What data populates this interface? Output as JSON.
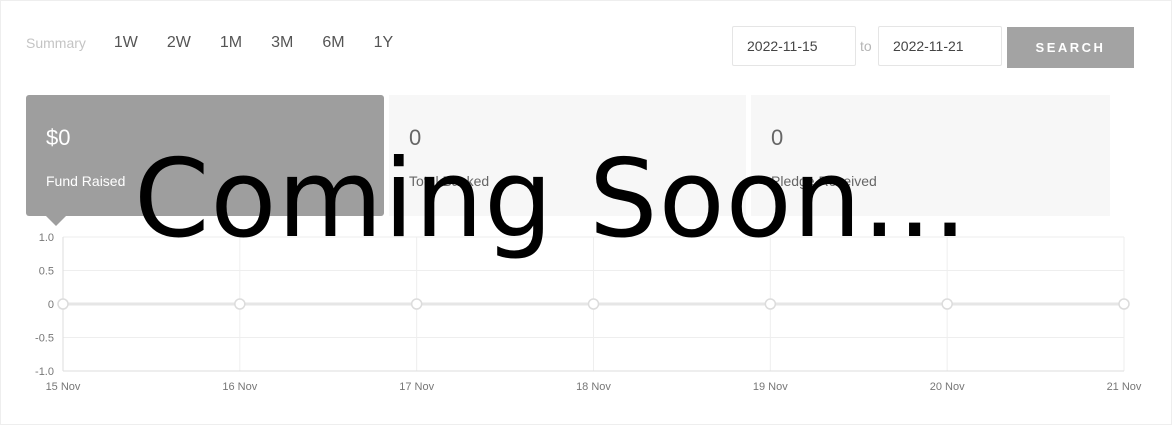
{
  "filters": {
    "summary_label": "Summary",
    "periods": [
      "1W",
      "2W",
      "1M",
      "3M",
      "6M",
      "1Y"
    ]
  },
  "date_range": {
    "from": "2022-11-15",
    "to_label": "to",
    "to": "2022-11-21",
    "search_label": "SEARCH"
  },
  "cards": [
    {
      "value": "$0",
      "label": "Fund Raised",
      "active": true
    },
    {
      "value": "0",
      "label": "Total Backed",
      "active": false
    },
    {
      "value": "0",
      "label": "Pledge Received",
      "active": false
    }
  ],
  "overlay": {
    "text": "Coming Soon..."
  },
  "colors": {
    "accent_gray": "#9e9e9e",
    "button_gray": "#a3a3a3",
    "card_bg": "#f7f7f7",
    "grid": "#eeeeee",
    "line": "#e6e6e6"
  },
  "chart_data": {
    "type": "line",
    "categories": [
      "15 Nov",
      "16 Nov",
      "17 Nov",
      "18 Nov",
      "19 Nov",
      "20 Nov",
      "21 Nov"
    ],
    "series": [
      {
        "values": [
          0,
          0,
          0,
          0,
          0,
          0,
          0
        ]
      }
    ],
    "yticks": [
      "1.0",
      "0.5",
      "0",
      "-0.5",
      "-1.0"
    ],
    "ylim": [
      -1,
      1
    ],
    "grid": true
  }
}
